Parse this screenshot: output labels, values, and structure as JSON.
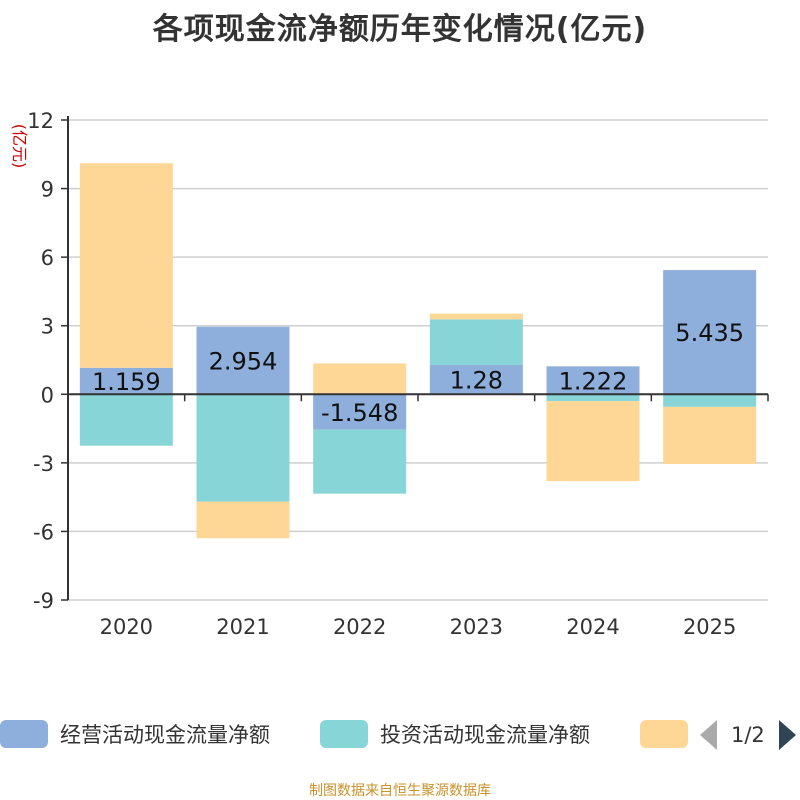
{
  "title": "各项现金流净额历年变化情况(亿元)",
  "source": "制图数据来自恒生聚源数据库",
  "legend_page": "1/2",
  "chart_data": {
    "type": "bar",
    "stacked": true,
    "title": "各项现金流净额历年变化情况(亿元)",
    "ylabel": "(亿元)",
    "xlabel": "",
    "categories": [
      "2020",
      "2021",
      "2022",
      "2023",
      "2024",
      "2025"
    ],
    "ylim": [
      -9,
      12
    ],
    "yticks": [
      "12",
      "9",
      "6",
      "3",
      "0",
      "-3",
      "-6",
      "-9"
    ],
    "grid": true,
    "series": [
      {
        "name": "经营活动现金流量净额",
        "color": "#8eaedb",
        "values": [
          1.159,
          2.954,
          -1.548,
          1.28,
          1.222,
          5.435
        ],
        "labels": [
          "1.159",
          "2.954",
          "-1.548",
          "1.28",
          "1.222",
          "5.435"
        ]
      },
      {
        "name": "投资活动现金流量净额",
        "color": "#88d5d8",
        "values": [
          -2.25,
          -4.7,
          -2.8,
          2.0,
          -0.3,
          -0.55
        ],
        "labels": []
      },
      {
        "name": "",
        "color": "#fed797",
        "values": [
          8.95,
          -1.6,
          1.35,
          0.25,
          -3.5,
          -2.5
        ],
        "labels": []
      }
    ],
    "legend_position": "bottom"
  }
}
